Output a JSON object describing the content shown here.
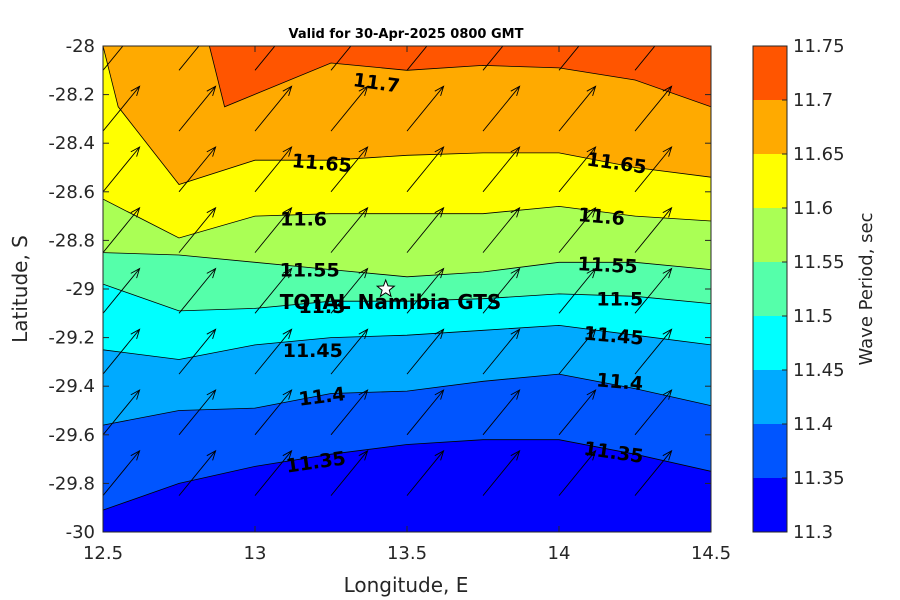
{
  "chart_data": {
    "type": "contour",
    "title": "Valid for 30-Apr-2025 0800 GMT",
    "xlabel": "Longitude, E",
    "ylabel": "Latitude, S",
    "colorbar_label": "Wave Period, sec",
    "xlim": [
      12.5,
      14.5
    ],
    "ylim": [
      -30,
      -28
    ],
    "x_ticks": [
      "12.5",
      "13",
      "13.5",
      "14",
      "14.5"
    ],
    "y_ticks": [
      "-28",
      "-28.2",
      "-28.4",
      "-28.6",
      "-28.8",
      "-29",
      "-29.2",
      "-29.4",
      "-29.6",
      "-29.8",
      "-30"
    ],
    "colorbar_ticks": [
      "11.3",
      "11.35",
      "11.4",
      "11.45",
      "11.5",
      "11.55",
      "11.6",
      "11.65",
      "11.7",
      "11.75"
    ],
    "levels": [
      11.3,
      11.35,
      11.4,
      11.45,
      11.5,
      11.55,
      11.6,
      11.65,
      11.7,
      11.75
    ],
    "level_colors": [
      "#0000ff",
      "#0055ff",
      "#00aaff",
      "#00ffff",
      "#55ffaa",
      "#aaff55",
      "#ffff00",
      "#ffaa00",
      "#ff5500"
    ],
    "contours": [
      {
        "level": 11.35,
        "points": [
          [
            12.5,
            -29.91
          ],
          [
            12.75,
            -29.8
          ],
          [
            13,
            -29.73
          ],
          [
            13.25,
            -29.68
          ],
          [
            13.5,
            -29.64
          ],
          [
            13.75,
            -29.62
          ],
          [
            14,
            -29.62
          ],
          [
            14.25,
            -29.68
          ],
          [
            14.5,
            -29.75
          ]
        ]
      },
      {
        "level": 11.4,
        "points": [
          [
            12.5,
            -29.56
          ],
          [
            12.75,
            -29.5
          ],
          [
            13,
            -29.49
          ],
          [
            13.25,
            -29.43
          ],
          [
            13.5,
            -29.42
          ],
          [
            13.75,
            -29.38
          ],
          [
            14,
            -29.35
          ],
          [
            14.25,
            -29.41
          ],
          [
            14.5,
            -29.48
          ]
        ]
      },
      {
        "level": 11.45,
        "points": [
          [
            12.5,
            -29.25
          ],
          [
            12.75,
            -29.29
          ],
          [
            13,
            -29.23
          ],
          [
            13.25,
            -29.2
          ],
          [
            13.5,
            -29.19
          ],
          [
            13.75,
            -29.17
          ],
          [
            14,
            -29.15
          ],
          [
            14.25,
            -29.19
          ],
          [
            14.5,
            -29.23
          ]
        ]
      },
      {
        "level": 11.5,
        "points": [
          [
            12.5,
            -28.98
          ],
          [
            12.75,
            -29.09
          ],
          [
            13,
            -29.08
          ],
          [
            13.25,
            -29.05
          ],
          [
            13.5,
            -29.05
          ],
          [
            13.75,
            -29.04
          ],
          [
            14,
            -29.02
          ],
          [
            14.25,
            -29.03
          ],
          [
            14.5,
            -29.06
          ]
        ]
      },
      {
        "level": 11.55,
        "points": [
          [
            12.5,
            -28.85
          ],
          [
            12.75,
            -28.86
          ],
          [
            13,
            -28.89
          ],
          [
            13.25,
            -28.92
          ],
          [
            13.5,
            -28.95
          ],
          [
            13.75,
            -28.93
          ],
          [
            14,
            -28.89
          ],
          [
            14.25,
            -28.89
          ],
          [
            14.5,
            -28.92
          ]
        ]
      },
      {
        "level": 11.6,
        "points": [
          [
            12.5,
            -28.63
          ],
          [
            12.75,
            -28.79
          ],
          [
            13,
            -28.7
          ],
          [
            13.25,
            -28.69
          ],
          [
            13.5,
            -28.69
          ],
          [
            13.75,
            -28.69
          ],
          [
            14,
            -28.66
          ],
          [
            14.25,
            -28.7
          ],
          [
            14.5,
            -28.72
          ]
        ]
      },
      {
        "level": 11.65,
        "points": [
          [
            12.5,
            -28.0
          ],
          [
            12.55,
            -28.25
          ],
          [
            12.75,
            -28.57
          ],
          [
            13,
            -28.47
          ],
          [
            13.25,
            -28.47
          ],
          [
            13.5,
            -28.45
          ],
          [
            13.75,
            -28.44
          ],
          [
            14,
            -28.44
          ],
          [
            14.25,
            -28.5
          ],
          [
            14.5,
            -28.54
          ]
        ]
      },
      {
        "level": 11.7,
        "points": [
          [
            12.85,
            -28.0
          ],
          [
            12.9,
            -28.25
          ],
          [
            13.25,
            -28.07
          ],
          [
            13.5,
            -28.1
          ],
          [
            13.75,
            -28.08
          ],
          [
            14,
            -28.09
          ],
          [
            14.25,
            -28.14
          ],
          [
            14.5,
            -28.25
          ]
        ]
      }
    ],
    "contour_labels": [
      {
        "text": "11.7",
        "lon": 13.4,
        "lat": -28.15,
        "angle": 8
      },
      {
        "text": "11.65",
        "lon": 13.22,
        "lat": -28.48,
        "angle": 5
      },
      {
        "text": "11.65",
        "lon": 14.19,
        "lat": -28.48,
        "angle": 8
      },
      {
        "text": "11.6",
        "lon": 13.16,
        "lat": -28.71,
        "angle": 0
      },
      {
        "text": "11.6",
        "lon": 14.14,
        "lat": -28.7,
        "angle": 5
      },
      {
        "text": "11.55",
        "lon": 13.18,
        "lat": -28.92,
        "angle": 0
      },
      {
        "text": "11.55",
        "lon": 14.16,
        "lat": -28.9,
        "angle": 3
      },
      {
        "text": "11.5",
        "lon": 13.22,
        "lat": -29.07,
        "angle": 0
      },
      {
        "text": "11.5",
        "lon": 14.2,
        "lat": -29.04,
        "angle": 0
      },
      {
        "text": "11.45",
        "lon": 13.19,
        "lat": -29.25,
        "angle": 0
      },
      {
        "text": "11.45",
        "lon": 14.18,
        "lat": -29.19,
        "angle": 5
      },
      {
        "text": "11.4",
        "lon": 13.22,
        "lat": -29.44,
        "angle": -7
      },
      {
        "text": "11.4",
        "lon": 14.2,
        "lat": -29.38,
        "angle": 5
      },
      {
        "text": "11.35",
        "lon": 13.2,
        "lat": -29.71,
        "angle": -8
      },
      {
        "text": "11.35",
        "lon": 14.18,
        "lat": -29.67,
        "angle": 8
      }
    ],
    "wind_arrows": {
      "lons": [
        12.5,
        12.75,
        13,
        13.25,
        13.5,
        13.75,
        14,
        14.25
      ],
      "lats": [
        -28.1,
        -28.35,
        -28.6,
        -28.85,
        -29.1,
        -29.35,
        -29.6,
        -29.85
      ],
      "u": 0.63,
      "v": 0.77,
      "length_deg_lon": 0.19
    },
    "site": {
      "name": "TOTAL Namibia GTS",
      "lon": 13.43,
      "lat": -29.0
    }
  }
}
